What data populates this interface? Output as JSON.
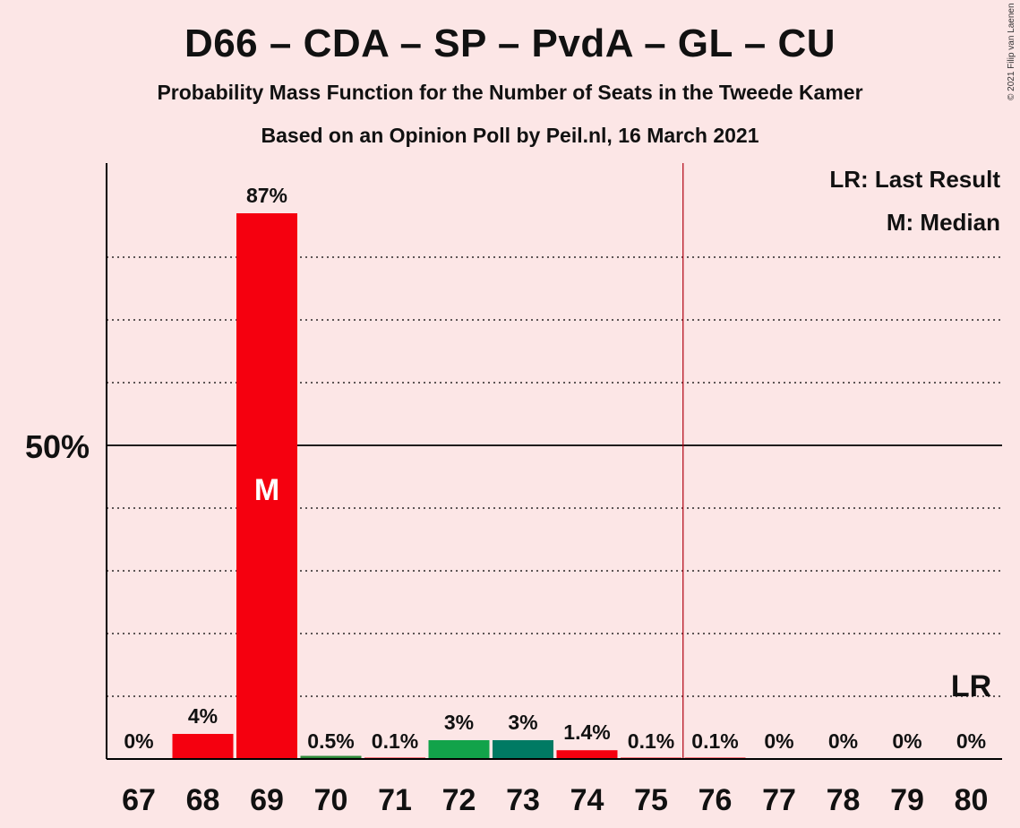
{
  "chart_data": {
    "type": "bar",
    "title": "D66 – CDA – SP – PvdA – GL – CU",
    "subtitle": "Probability Mass Function for the Number of Seats in the Tweede Kamer",
    "subtitle2": "Based on an Opinion Poll by Peil.nl, 16 March 2021",
    "categories": [
      "67",
      "68",
      "69",
      "70",
      "71",
      "72",
      "73",
      "74",
      "75",
      "76",
      "77",
      "78",
      "79",
      "80"
    ],
    "values": [
      0,
      4,
      87,
      0.5,
      0.1,
      3,
      3,
      1.4,
      0.1,
      0.1,
      0,
      0,
      0,
      0
    ],
    "data_labels": [
      "0%",
      "4%",
      "87%",
      "0.5%",
      "0.1%",
      "3%",
      "3%",
      "1.4%",
      "0.1%",
      "0.1%",
      "0%",
      "0%",
      "0%",
      "0%"
    ],
    "bar_colors": [
      "#F5000F",
      "#F5000F",
      "#F5000F",
      "#2E8B3A",
      "#F5000F",
      "#12A34A",
      "#007A63",
      "#F5000F",
      "#F5000F",
      "#F5000F",
      "#F5000F",
      "#F5000F",
      "#F5000F",
      "#F5000F"
    ],
    "ylim": [
      0,
      95
    ],
    "y_tick_label": "50%",
    "y_tick_value": 50,
    "gridlines": [
      10,
      20,
      30,
      40,
      60,
      70,
      80
    ],
    "median_category": "69",
    "median_marker": "M",
    "majority_line_after": "75",
    "last_result_category": "80",
    "last_result_marker": "LR",
    "legend": [
      "LR: Last Result",
      "M: Median"
    ],
    "legend_position": "top-right"
  },
  "copyright": "© 2021 Filip van Laenen",
  "colors": {
    "background": "#FCE6E6",
    "majority_line": "#B00010",
    "axis": "#000000"
  }
}
